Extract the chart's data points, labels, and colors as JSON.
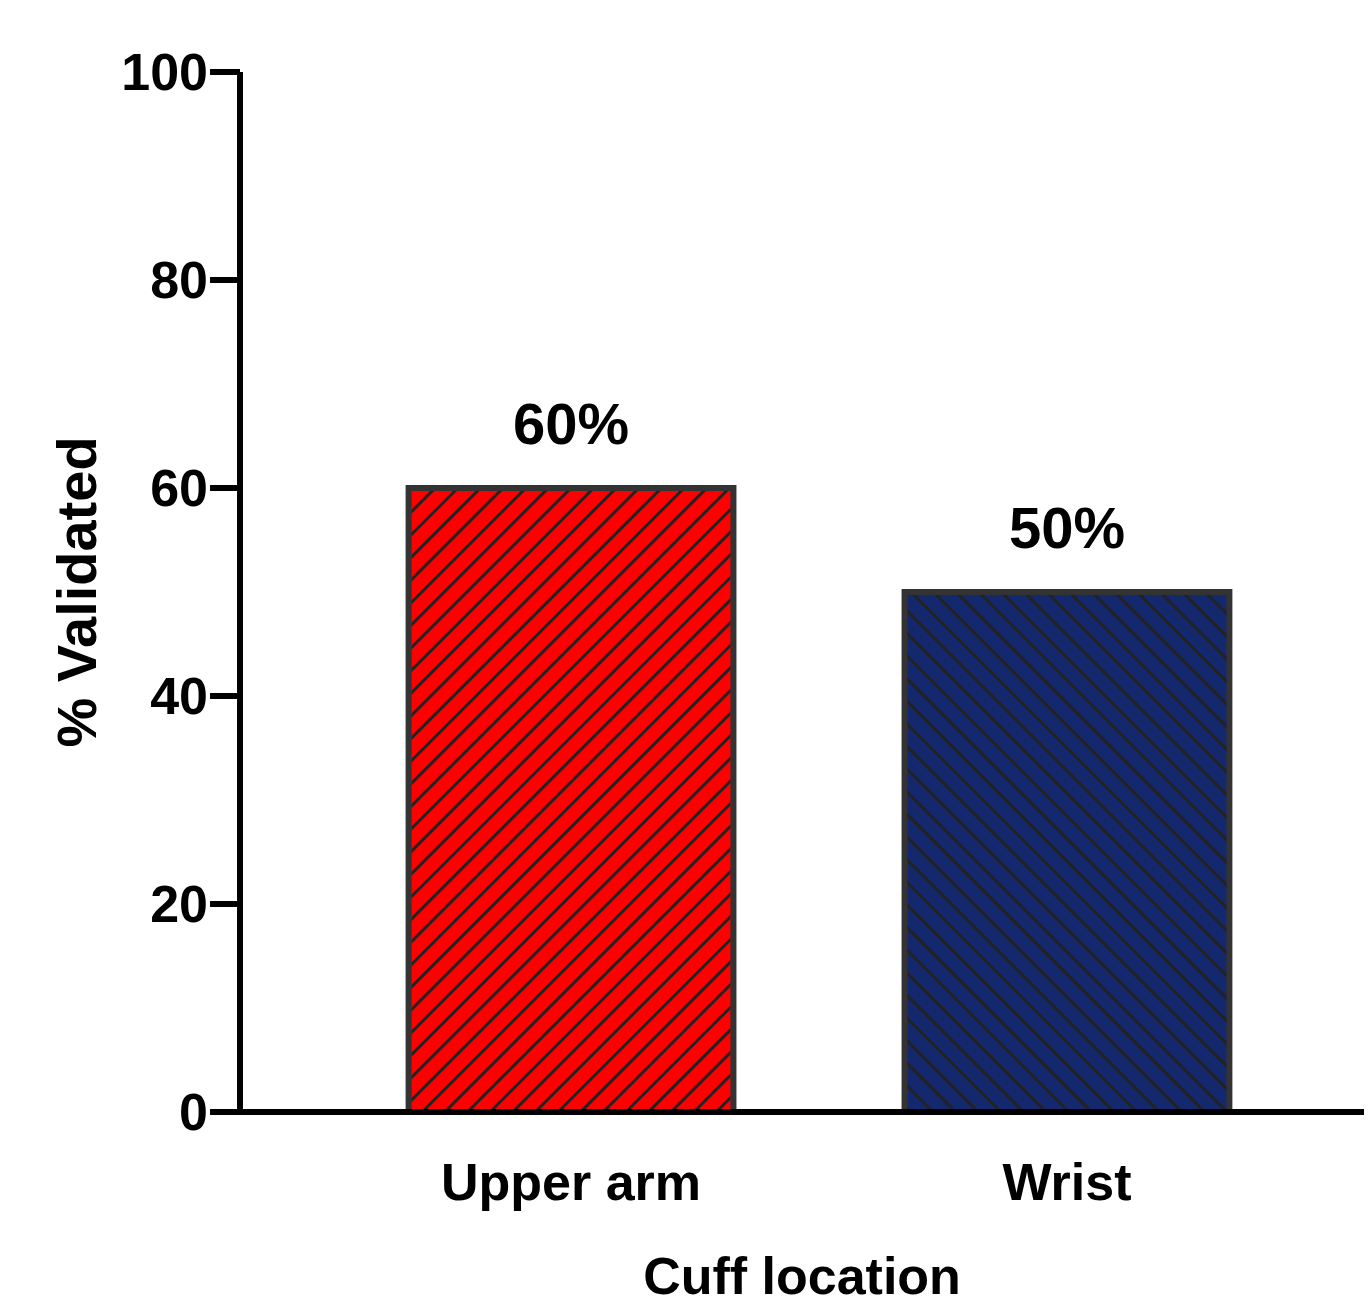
{
  "chart_data": {
    "type": "bar",
    "xlabel": "Cuff location",
    "ylabel": "% Validated",
    "categories": [
      "Upper arm",
      "Wrist"
    ],
    "values": [
      60,
      50
    ],
    "colors": [
      "#ff0000",
      "#14286e"
    ],
    "value_labels": [
      "60%",
      "50%"
    ],
    "ylim": [
      0,
      100
    ],
    "yticks": [
      0,
      20,
      40,
      60,
      80,
      100
    ],
    "grid": false
  }
}
